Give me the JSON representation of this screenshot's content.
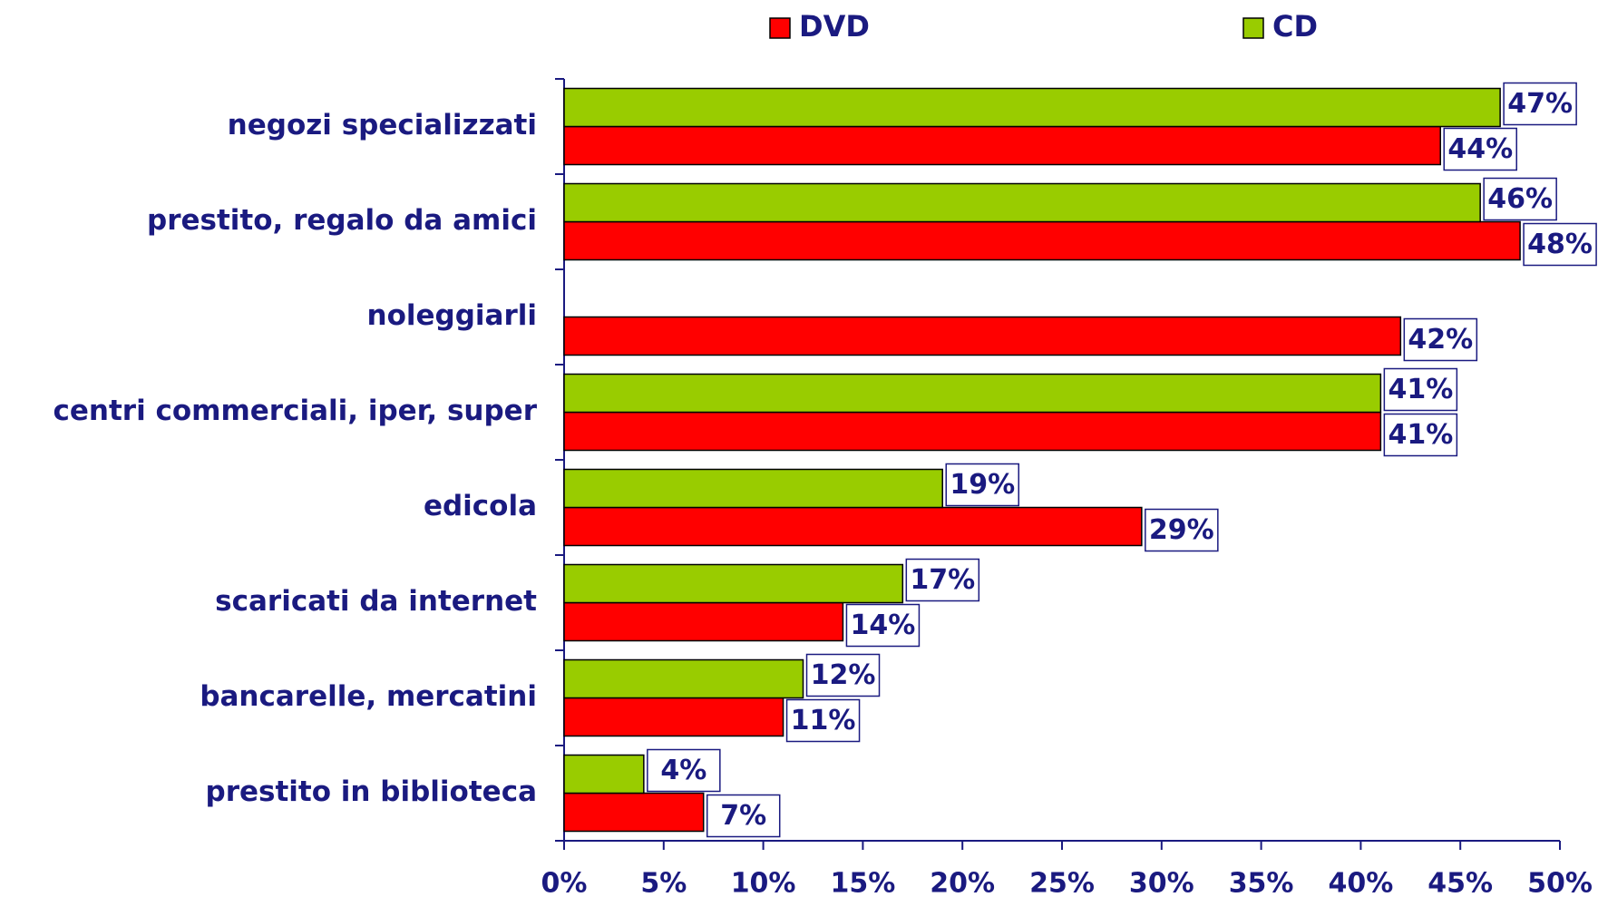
{
  "chart_data": {
    "type": "hbar",
    "categories": [
      "negozi specializzati",
      "prestito, regalo da amici",
      "noleggiarli",
      "centri commerciali, iper, super",
      "edicola",
      "scaricati da internet",
      "bancarelle, mercatini",
      "prestito in biblioteca"
    ],
    "series": [
      {
        "name": "DVD",
        "color": "#ff0000",
        "values": [
          44,
          48,
          42,
          41,
          29,
          14,
          11,
          7
        ],
        "value_labels": [
          "44%",
          "48%",
          "42%",
          "41%",
          "29%",
          "14%",
          "11%",
          "7%"
        ]
      },
      {
        "name": "CD",
        "color": "#99cc00",
        "values": [
          47,
          46,
          null,
          41,
          19,
          17,
          12,
          4
        ],
        "value_labels": [
          "47%",
          "46%",
          null,
          "41%",
          "19%",
          "17%",
          "12%",
          "4%"
        ]
      }
    ],
    "xlim": [
      0,
      50
    ],
    "xticks": [
      {
        "value": 0,
        "label": "0%"
      },
      {
        "value": 5,
        "label": "5%"
      },
      {
        "value": 10,
        "label": "10%"
      },
      {
        "value": 15,
        "label": "15%"
      },
      {
        "value": 20,
        "label": "20%"
      },
      {
        "value": 25,
        "label": "25%"
      },
      {
        "value": 30,
        "label": "30%"
      },
      {
        "value": 35,
        "label": "35%"
      },
      {
        "value": 40,
        "label": "40%"
      },
      {
        "value": 45,
        "label": "45%"
      },
      {
        "value": 50,
        "label": "50%"
      }
    ],
    "legend": "top"
  }
}
